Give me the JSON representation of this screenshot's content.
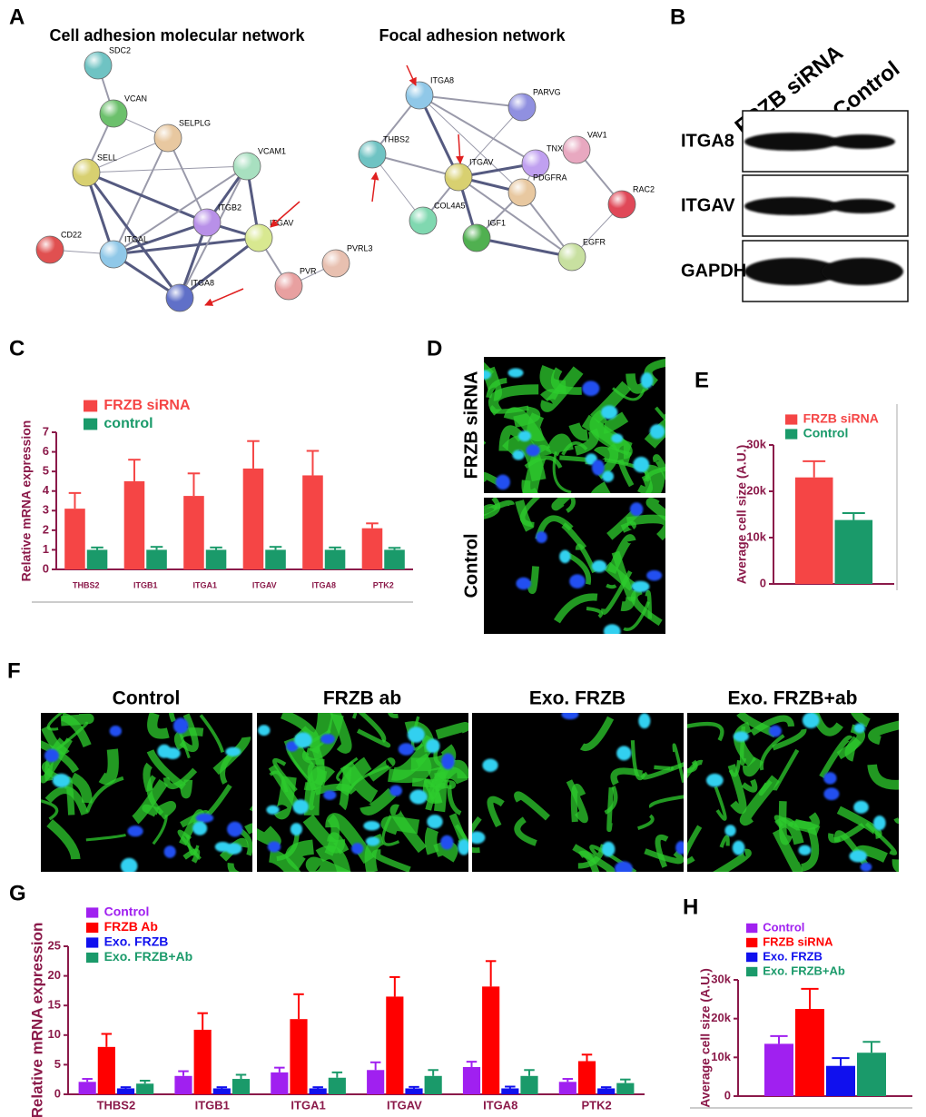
{
  "panel_labels": [
    "A",
    "B",
    "C",
    "D",
    "E",
    "F",
    "G",
    "H"
  ],
  "network_a": {
    "title": "Cell adhesion molecular network",
    "nodes": [
      "SDC2",
      "VCAN",
      "SELPLG",
      "SELL",
      "VCAM1",
      "ITGB2",
      "ITGAV",
      "CD22",
      "ITGAL",
      "PVRL3",
      "PVR",
      "ITGA8"
    ]
  },
  "network_b": {
    "title": "Focal adhesion network",
    "nodes": [
      "ITGA8",
      "PARVG",
      "THBS2",
      "TNXB",
      "VAV1",
      "ITGAV",
      "PDGFRA",
      "RAC2",
      "COL4A5",
      "IGF1",
      "EGFR"
    ]
  },
  "blot": {
    "columns": [
      "FRZB siRNA",
      "Control"
    ],
    "rows": [
      "ITGA8",
      "ITGAV",
      "GAPDH"
    ]
  },
  "image_d": {
    "rows": [
      "FRZB siRNA",
      "Control"
    ]
  },
  "image_f": {
    "columns": [
      "Control",
      "FRZB ab",
      "Exo. FRZB",
      "Exo. FRZB+ab"
    ]
  },
  "chart_data": [
    {
      "type": "bar",
      "y_label": "Relative mRNA expression",
      "categories": [
        "THBS2",
        "ITGB1",
        "ITGA1",
        "ITGAV",
        "ITGA8",
        "PTK2"
      ],
      "series": [
        {
          "name": "FRZB siRNA",
          "color": "#f54545",
          "values": [
            3.1,
            4.5,
            3.75,
            5.15,
            4.8,
            2.1
          ],
          "errors": [
            0.8,
            1.1,
            1.15,
            1.4,
            1.25,
            0.25
          ]
        },
        {
          "name": "control",
          "color": "#1a9a6a",
          "values": [
            1,
            1,
            1,
            1,
            1,
            1
          ],
          "errors": [
            0.12,
            0.15,
            0.12,
            0.15,
            0.12,
            0.1
          ]
        }
      ],
      "ylim": [
        0,
        7
      ],
      "yticks": [
        0,
        1,
        2,
        3,
        4,
        5,
        6,
        7
      ]
    },
    {
      "type": "bar",
      "y_label": "Average cell size (A.U.)",
      "categories": [
        null
      ],
      "series": [
        {
          "name": "FRZB siRNA",
          "color": "#f54545",
          "values": [
            23000
          ],
          "errors": [
            3500
          ]
        },
        {
          "name": "Control",
          "color": "#1a9a6a",
          "values": [
            13800
          ],
          "errors": [
            1500
          ]
        }
      ],
      "ylim": [
        0,
        30000
      ],
      "yticks": [
        0,
        {
          "value": 10000,
          "label": "10k"
        },
        {
          "value": 20000,
          "label": "20k"
        },
        {
          "value": 30000,
          "label": "30k"
        }
      ]
    },
    {
      "type": "bar",
      "y_label": "Relative mRNA expression",
      "categories": [
        "THBS2",
        "ITGB1",
        "ITGA1",
        "ITGAV",
        "ITGA8",
        "PTK2"
      ],
      "series": [
        {
          "name": "Control",
          "color": "#a020f0",
          "values": [
            2.1,
            3.1,
            3.7,
            4.1,
            4.6,
            2.1
          ],
          "errors": [
            0.5,
            0.8,
            0.8,
            1.3,
            0.9,
            0.5
          ]
        },
        {
          "name": "FRZB Ab",
          "color": "#ff0000",
          "values": [
            8,
            10.9,
            12.7,
            16.5,
            18.2,
            5.6
          ],
          "errors": [
            2.2,
            2.8,
            4.2,
            3.3,
            4.3,
            1.1
          ]
        },
        {
          "name": "Exo. FRZB",
          "color": "#1010ee",
          "values": [
            1,
            1,
            1,
            1,
            1,
            1
          ],
          "errors": [
            0.2,
            0.2,
            0.2,
            0.25,
            0.3,
            0.2
          ]
        },
        {
          "name": "Exo. FRZB+Ab",
          "color": "#1a9a6a",
          "values": [
            1.8,
            2.6,
            2.8,
            3.1,
            3.1,
            1.9
          ],
          "errors": [
            0.5,
            0.7,
            0.9,
            1,
            1,
            0.6
          ]
        }
      ],
      "ylim": [
        0,
        25
      ],
      "yticks": [
        0,
        5,
        10,
        15,
        20,
        25
      ]
    },
    {
      "type": "bar",
      "y_label": "Average cell size (A.U.)",
      "categories": [
        null
      ],
      "series": [
        {
          "name": "Control",
          "color": "#a020f0",
          "values": [
            13500
          ],
          "errors": [
            2000
          ]
        },
        {
          "name": "FRZB siRNA",
          "color": "#ff0000",
          "values": [
            22500
          ],
          "errors": [
            5200
          ]
        },
        {
          "name": "Exo. FRZB",
          "color": "#1010ee",
          "values": [
            7800
          ],
          "errors": [
            2000
          ]
        },
        {
          "name": "Exo. FRZB+Ab",
          "color": "#1a9a6a",
          "values": [
            11200
          ],
          "errors": [
            2800
          ]
        }
      ],
      "ylim": [
        0,
        30000
      ],
      "yticks": [
        0,
        {
          "value": 10000,
          "label": "10k"
        },
        {
          "value": 20000,
          "label": "20k"
        },
        {
          "value": 30000,
          "label": "30k"
        }
      ]
    }
  ]
}
